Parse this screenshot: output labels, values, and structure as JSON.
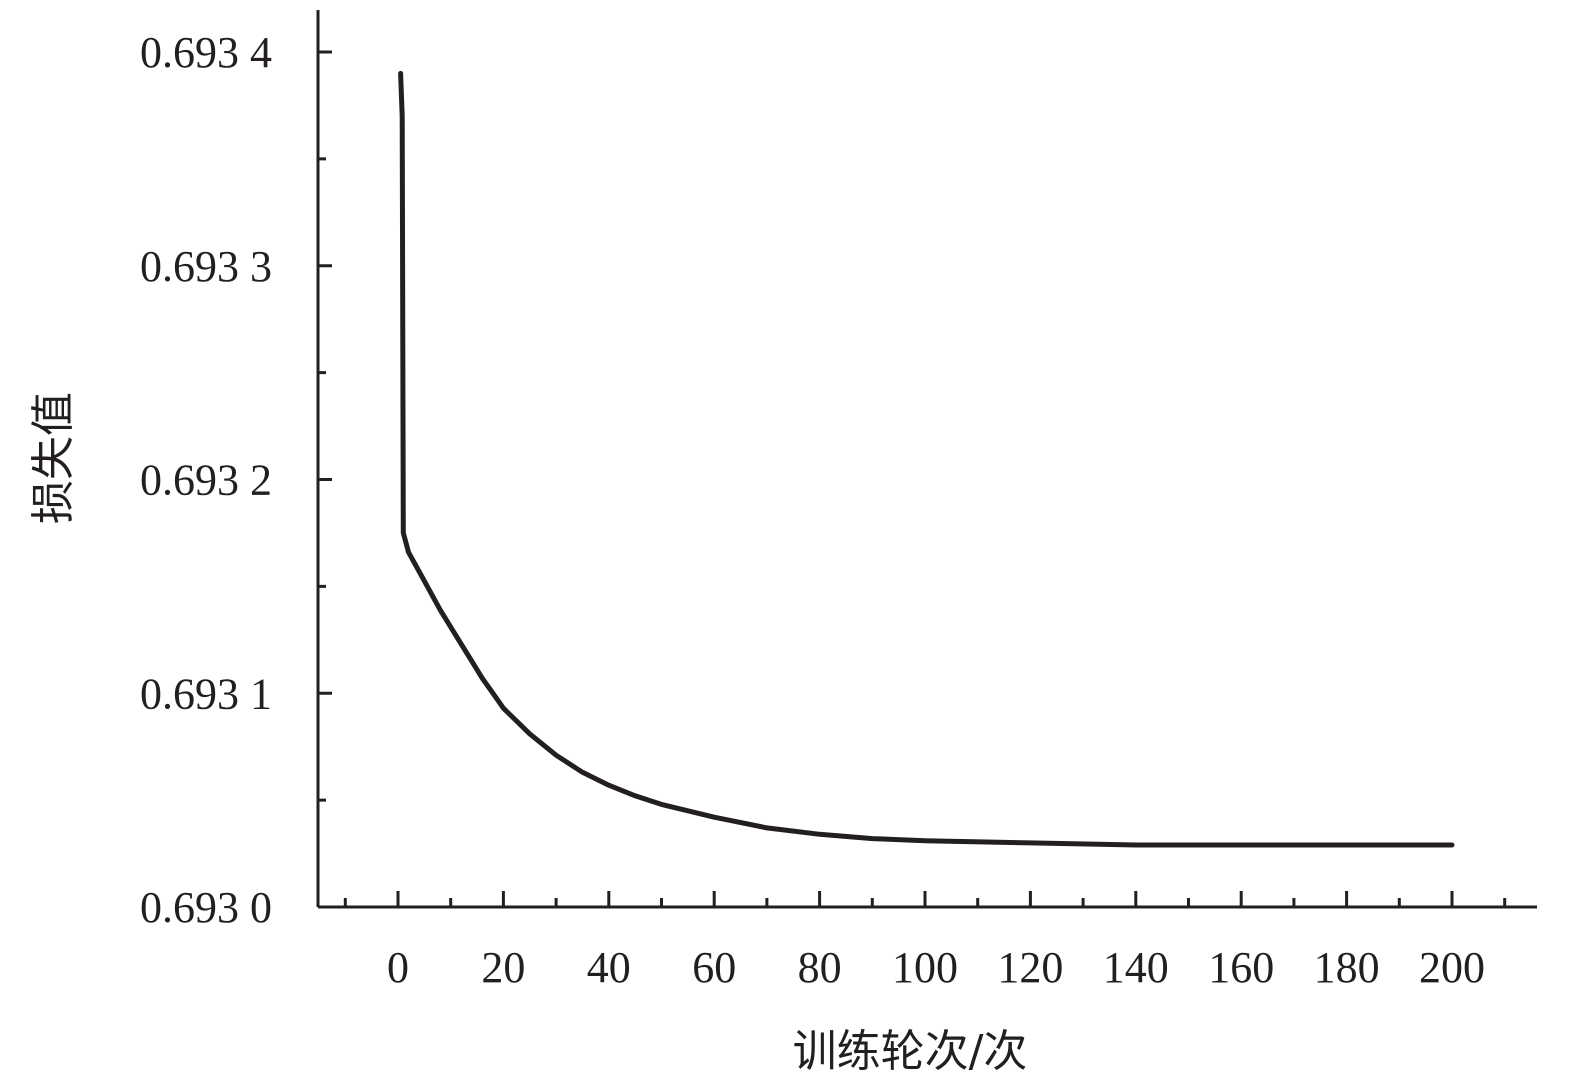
{
  "chart_data": {
    "type": "line",
    "title": "",
    "xlabel": "训练轮次/次",
    "ylabel": "损失值",
    "xlim": [
      -15,
      215
    ],
    "ylim": [
      0.693,
      0.69344
    ],
    "x_ticks": [
      0,
      20,
      40,
      60,
      80,
      100,
      120,
      140,
      160,
      180,
      200
    ],
    "x_tick_labels": [
      "0",
      "20",
      "40",
      "60",
      "80",
      "100",
      "120",
      "140",
      "160",
      "180",
      "200"
    ],
    "y_ticks": [
      0.693,
      0.6931,
      0.6932,
      0.6933,
      0.6934
    ],
    "y_tick_labels": [
      "0.693 0",
      "0.693 1",
      "0.693 2",
      "0.693 3",
      "0.693 4"
    ],
    "grid": false,
    "line_color": "#231f20",
    "series": [
      {
        "x": [
          0.5,
          0.8,
          1.0,
          2,
          4,
          6,
          8,
          10,
          12,
          14,
          16,
          18,
          20,
          25,
          30,
          35,
          40,
          45,
          50,
          55,
          60,
          70,
          80,
          90,
          100,
          120,
          140,
          160,
          180,
          200
        ],
        "y": [
          0.69339,
          0.69337,
          0.693175,
          0.693166,
          0.693157,
          0.693148,
          0.693139,
          0.693131,
          0.693123,
          0.693115,
          0.693107,
          0.6931,
          0.693093,
          0.693081,
          0.693071,
          0.693063,
          0.693057,
          0.693052,
          0.693048,
          0.693045,
          0.693042,
          0.693037,
          0.693034,
          0.693032,
          0.693031,
          0.69303,
          0.693029,
          0.693029,
          0.693029,
          0.693029
        ]
      }
    ]
  }
}
